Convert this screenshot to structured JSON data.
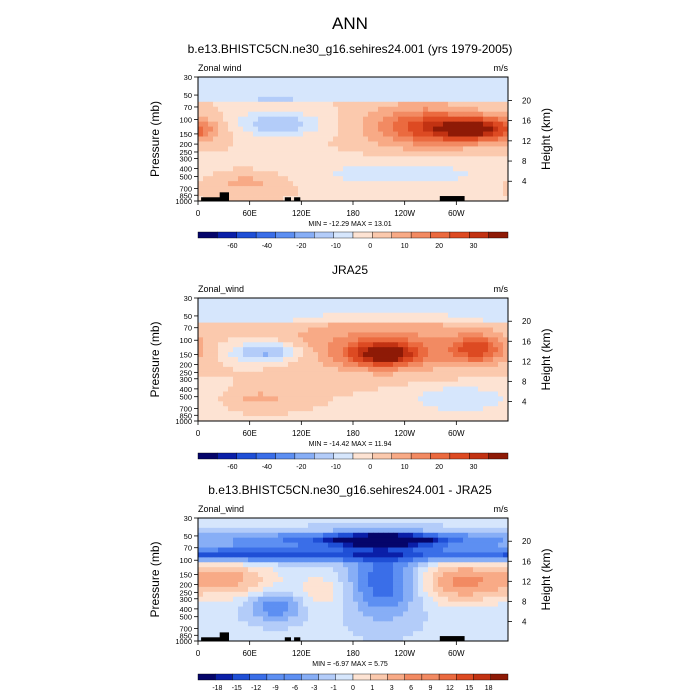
{
  "figure": {
    "main_title": "ANN"
  },
  "colors": {
    "blues": [
      "#05056a",
      "#0a1fa8",
      "#1f4fd6",
      "#3a6ee8",
      "#5d8ff2",
      "#87aef6",
      "#b3ccf9",
      "#d6e6fc"
    ],
    "reds": [
      "#fde3d3",
      "#fbc9ad",
      "#f8aa86",
      "#f28a62",
      "#eb6a3f",
      "#dd4a22",
      "#c23212",
      "#8e1a06"
    ],
    "land": "#000000"
  },
  "chart_data": [
    {
      "type": "heatmap",
      "title": "b.e13.BHISTC5CN.ne30_g16.sehires24.001 (yrs 1979-2005)",
      "left_label": "Zonal wind",
      "right_label": "m/s",
      "ylabel": "Pressure (mb)",
      "ylabel_right": "Height (km)",
      "x_ticks": [
        "0",
        "60E",
        "120E",
        "180",
        "120W",
        "60W"
      ],
      "y_ticks": [
        "30",
        "50",
        "70",
        "100",
        "150",
        "200",
        "250",
        "300",
        "400",
        "500",
        "700",
        "850",
        "1000"
      ],
      "y_right_ticks": [
        "4",
        "8",
        "12",
        "16",
        "20"
      ],
      "stats": "MIN = -12.29  MAX =  13.01",
      "colorbar_labels": [
        "-60",
        "-40",
        "-20",
        "-10",
        "0",
        "10",
        "20",
        "30"
      ],
      "ylim": [
        1000,
        30
      ],
      "xlim": [
        0,
        360
      ]
    },
    {
      "type": "heatmap",
      "title": "JRA25",
      "left_label": "Zonal_wind",
      "right_label": "m/s",
      "ylabel": "Pressure (mb)",
      "ylabel_right": "Height (km)",
      "x_ticks": [
        "0",
        "60E",
        "120E",
        "180",
        "120W",
        "60W"
      ],
      "y_ticks": [
        "30",
        "50",
        "70",
        "100",
        "150",
        "200",
        "250",
        "300",
        "400",
        "500",
        "700",
        "850",
        "1000"
      ],
      "y_right_ticks": [
        "4",
        "8",
        "12",
        "16",
        "20"
      ],
      "stats": "MIN = -14.42  MAX = 11.94",
      "colorbar_labels": [
        "-60",
        "-40",
        "-20",
        "-10",
        "0",
        "10",
        "20",
        "30"
      ],
      "ylim": [
        1000,
        30
      ],
      "xlim": [
        0,
        360
      ]
    },
    {
      "type": "heatmap",
      "title": "b.e13.BHISTC5CN.ne30_g16.sehires24.001 - JRA25",
      "left_label": "Zonal_wind",
      "right_label": "m/s",
      "ylabel": "Pressure (mb)",
      "ylabel_right": "Height (km)",
      "x_ticks": [
        "0",
        "60E",
        "120E",
        "180",
        "120W",
        "60W"
      ],
      "y_ticks": [
        "30",
        "50",
        "70",
        "100",
        "150",
        "200",
        "250",
        "300",
        "400",
        "500",
        "700",
        "850",
        "1000"
      ],
      "y_right_ticks": [
        "4",
        "8",
        "12",
        "16",
        "20"
      ],
      "stats": "MIN =  -6.97  MAX =  5.75",
      "colorbar_labels": [
        "-18",
        "-15",
        "-12",
        "-9",
        "-6",
        "-3",
        "-1",
        "0",
        "1",
        "3",
        "6",
        "9",
        "12",
        "15",
        "18"
      ],
      "ylim": [
        1000,
        30
      ],
      "xlim": [
        0,
        360
      ]
    }
  ]
}
